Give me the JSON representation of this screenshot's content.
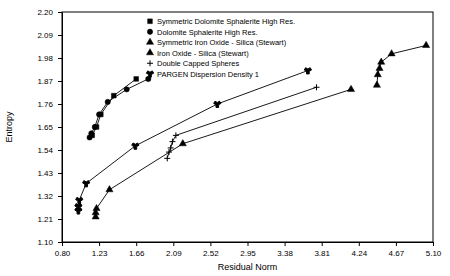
{
  "chart_data": {
    "type": "line",
    "x_label": "Residual Norm",
    "y_label": "Entropy",
    "xlim": [
      0.8,
      5.1
    ],
    "ylim": [
      1.1,
      2.2
    ],
    "xticks": [
      {
        "value": 0.8,
        "label": "0.80"
      },
      1.23,
      1.66,
      2.09,
      2.52,
      2.95,
      3.38,
      3.81,
      4.24,
      4.67,
      {
        "value": 5.1,
        "label": "5.10"
      }
    ],
    "yticks": [
      {
        "value": 1.1,
        "label": "1.10"
      },
      1.21,
      1.32,
      1.43,
      1.54,
      1.65,
      1.76,
      1.87,
      1.98,
      2.09,
      {
        "value": 2.2,
        "label": "2.20"
      }
    ],
    "legend": "upper left",
    "grid": false,
    "series": [
      {
        "name": "Symmetric Dolomite Sphalerite High Res.",
        "color": "#000000",
        "marker": "square",
        "x": [
          1.15,
          1.2,
          1.25,
          1.4,
          1.66
        ],
        "y": [
          1.61,
          1.65,
          1.71,
          1.8,
          1.88
        ]
      },
      {
        "name": "Dolomite Sphalerite High Res.",
        "color": "#000000",
        "marker": "circle",
        "x": [
          1.12,
          1.14,
          1.18,
          1.23,
          1.33,
          1.55,
          1.8
        ],
        "y": [
          1.6,
          1.62,
          1.65,
          1.71,
          1.77,
          1.83,
          1.88
        ]
      },
      {
        "name": "Symmetric Iron Oxide - Silica (Stewart)",
        "color": "#000000",
        "marker": "triangle",
        "x": [
          1.19,
          1.19,
          1.2,
          1.35,
          2.2,
          4.15
        ],
        "y": [
          1.22,
          1.24,
          1.26,
          1.35,
          1.57,
          1.83
        ]
      },
      {
        "name": "Iron Oxide - Silica (Stewart)",
        "color": "#000000",
        "marker": "triangle",
        "x": [
          4.45,
          4.46,
          4.48,
          4.5,
          4.62,
          5.02
        ],
        "y": [
          1.85,
          1.9,
          1.93,
          1.96,
          2.0,
          2.04
        ]
      },
      {
        "name": "Double Capped Spheres",
        "color": "#000000",
        "marker": "plus",
        "x": [
          2.02,
          2.04,
          2.06,
          2.08,
          2.12,
          3.75
        ],
        "y": [
          1.5,
          1.53,
          1.55,
          1.58,
          1.61,
          1.84
        ]
      },
      {
        "name": "PARGEN Dispersion Density 1",
        "color": "#000000",
        "marker": "wye",
        "x": [
          0.99,
          0.99,
          1.0,
          1.08,
          1.65,
          2.6,
          3.65
        ],
        "y": [
          1.25,
          1.27,
          1.3,
          1.38,
          1.56,
          1.76,
          1.92
        ]
      }
    ]
  }
}
